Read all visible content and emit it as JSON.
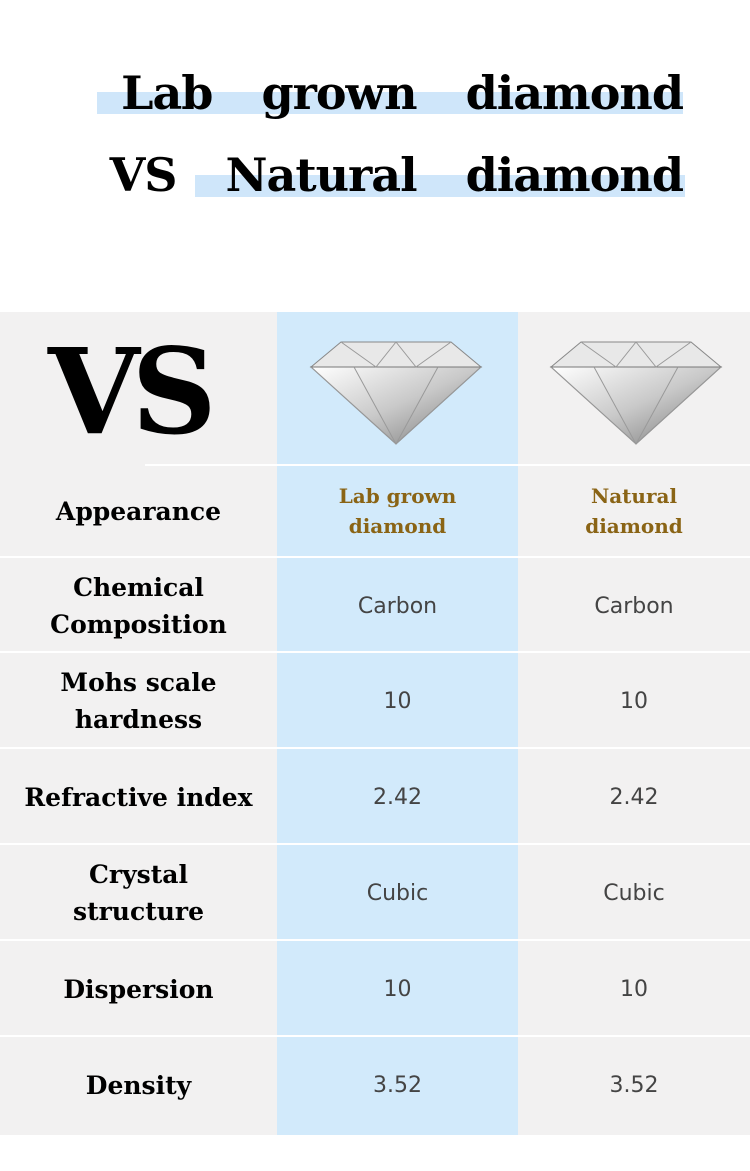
{
  "header": {
    "title": [
      "Lab grown diamond",
      "VS Natural diamond"
    ]
  },
  "table": {
    "corner": "VS",
    "rows": [
      [
        "Appearance",
        "Lab grown diamond",
        "Natural diamond"
      ],
      [
        "Chemical Composition",
        "Carbon",
        "Carbon"
      ],
      [
        "Mohs scale hardness",
        "10",
        "10"
      ],
      [
        "Refractive index",
        "2.42",
        "2.42"
      ],
      [
        "Crystal structure",
        "Cubic",
        "Cubic"
      ],
      [
        "Dispersion",
        "10",
        "10"
      ],
      [
        "Density",
        "3.52",
        "3.52"
      ]
    ]
  }
}
